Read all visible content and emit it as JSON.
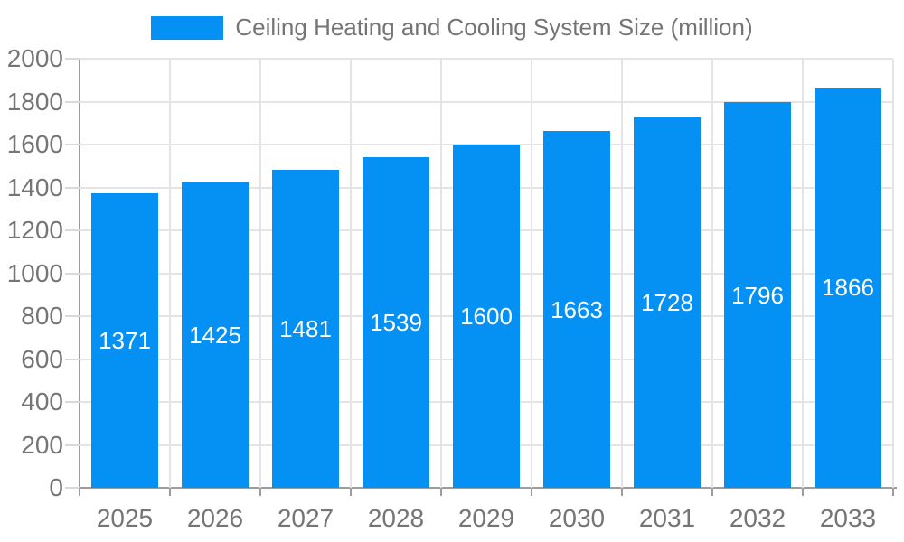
{
  "chart_data": {
    "type": "bar",
    "legend": {
      "label": "Ceiling Heating and Cooling System Size (million)",
      "position": "top"
    },
    "categories": [
      "2025",
      "2026",
      "2027",
      "2028",
      "2029",
      "2030",
      "2031",
      "2032",
      "2033"
    ],
    "series": [
      {
        "name": "Ceiling Heating and Cooling System Size (million)",
        "values": [
          1371,
          1425,
          1481,
          1539,
          1600,
          1663,
          1728,
          1796,
          1866
        ]
      }
    ],
    "xlabel": "",
    "ylabel": "",
    "ylim": [
      0,
      2000
    ],
    "ytick_step": 200,
    "y_ticks": [
      0,
      200,
      400,
      600,
      800,
      1000,
      1200,
      1400,
      1600,
      1800,
      2000
    ],
    "grid": true,
    "bar_value_labels_visible": true,
    "colors": {
      "bar": "#0590F3",
      "axis_text": "#757575",
      "bar_label_text": "#ffffff",
      "grid_line": "#e4e4e4",
      "y_tick_line": "#d9d9d9",
      "axis_line": "#9c9c9c",
      "background": "#ffffff"
    }
  }
}
